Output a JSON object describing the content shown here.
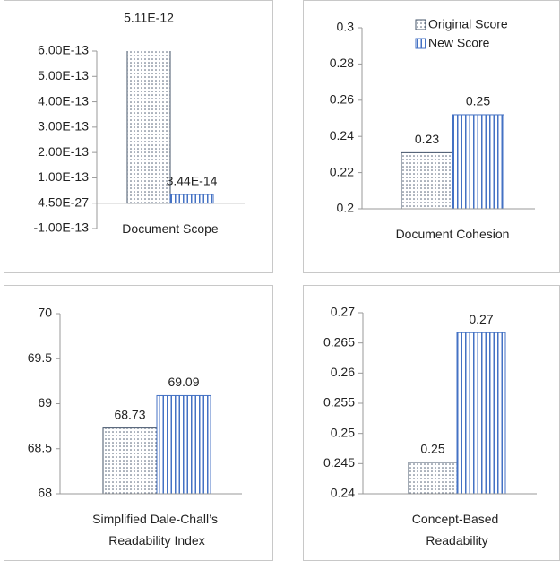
{
  "chart_data": [
    {
      "type": "bar",
      "categories": [
        "Document Scope"
      ],
      "series": [
        {
          "color": "#44546a",
          "pattern": "dots",
          "values": [
            5.11e-12
          ],
          "value_labels": [
            "5.11E-12"
          ]
        },
        {
          "color": "#4472c4",
          "pattern": "stripes",
          "values": [
            3.44e-14
          ],
          "value_labels": [
            "3.44E-14"
          ]
        }
      ],
      "ylim": [
        -1e-13,
        6e-13
      ],
      "yticks": [
        {
          "value": -1e-13,
          "label": "-1.00E-13"
        },
        {
          "value": 4.5e-27,
          "label": "4.50E-27"
        },
        {
          "value": 1e-13,
          "label": "1.00E-13"
        },
        {
          "value": 2e-13,
          "label": "2.00E-13"
        },
        {
          "value": 3e-13,
          "label": "3.00E-13"
        },
        {
          "value": 4e-13,
          "label": "4.00E-13"
        },
        {
          "value": 5e-13,
          "label": "5.00E-13"
        },
        {
          "value": 6e-13,
          "label": "6.00E-13"
        }
      ]
    },
    {
      "type": "bar",
      "categories": [
        "Document Cohesion"
      ],
      "legend": "upper right",
      "series": [
        {
          "name": "Original Score",
          "color": "#44546a",
          "pattern": "dots",
          "values": [
            0.231
          ],
          "value_labels": [
            "0.23"
          ]
        },
        {
          "name": "New Score",
          "color": "#4472c4",
          "pattern": "stripes",
          "values": [
            0.252
          ],
          "value_labels": [
            "0.25"
          ]
        }
      ],
      "ylim": [
        0.2,
        0.3
      ],
      "yticks": [
        0.2,
        0.22,
        0.24,
        0.26,
        0.28,
        0.3
      ]
    },
    {
      "type": "bar",
      "categories": [
        "Simplified Dale-Chall’s Readability Index"
      ],
      "series": [
        {
          "color": "#44546a",
          "pattern": "dots",
          "values": [
            68.73
          ]
        },
        {
          "color": "#4472c4",
          "pattern": "stripes",
          "values": [
            69.09
          ]
        }
      ],
      "ylim": [
        68,
        70
      ],
      "yticks": [
        68,
        68.5,
        69,
        69.5,
        70
      ]
    },
    {
      "type": "bar",
      "categories": [
        "Concept-Based Readability"
      ],
      "series": [
        {
          "color": "#44546a",
          "pattern": "dots",
          "values": [
            0.2452
          ],
          "value_labels": [
            "0.25"
          ]
        },
        {
          "color": "#4472c4",
          "pattern": "stripes",
          "values": [
            0.2667
          ],
          "value_labels": [
            "0.27"
          ]
        }
      ],
      "ylim": [
        0.24,
        0.27
      ],
      "yticks": [
        0.24,
        0.245,
        0.25,
        0.255,
        0.26,
        0.265,
        0.27
      ]
    }
  ]
}
